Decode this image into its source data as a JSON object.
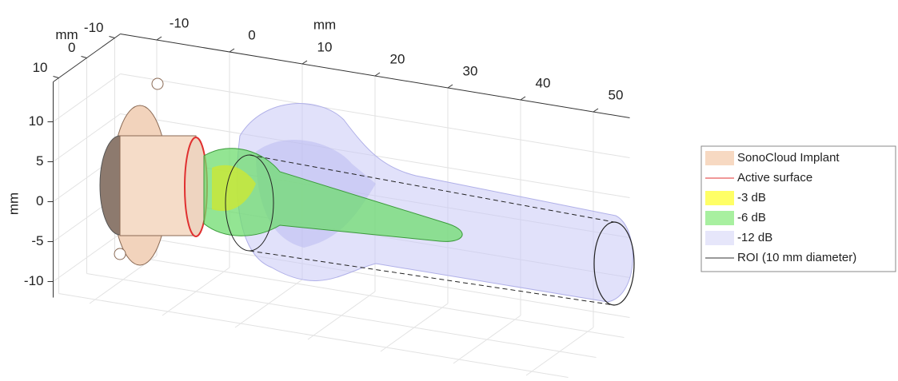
{
  "chart_data": {
    "type": "surface3d",
    "xlabel": "mm",
    "ylabel": "mm",
    "zlabel": "mm",
    "xlim": [
      -15,
      55
    ],
    "ylim": [
      -12,
      12
    ],
    "zlim": [
      -12,
      15
    ],
    "xticks": [
      -10,
      0,
      10,
      20,
      30,
      40,
      50
    ],
    "yticks": [
      -10,
      0,
      10
    ],
    "zticks": [
      -10,
      -5,
      0,
      5,
      10
    ],
    "grid": true,
    "legend": "east",
    "series": [
      {
        "name": "SonoCloud Implant",
        "color": "#f7d9c2",
        "kind": "patch"
      },
      {
        "name": "Active surface",
        "color": "#e03030",
        "kind": "line"
      },
      {
        "name": "-3 dB",
        "color": "#ffff66",
        "kind": "patch"
      },
      {
        "name": "-6 dB",
        "color": "#a8f0a0",
        "kind": "patch"
      },
      {
        "name": "-12 dB",
        "color": "#e6e6fa",
        "kind": "patch"
      },
      {
        "name": "ROI (10 mm diameter)",
        "color": "#333333",
        "kind": "line"
      }
    ]
  }
}
